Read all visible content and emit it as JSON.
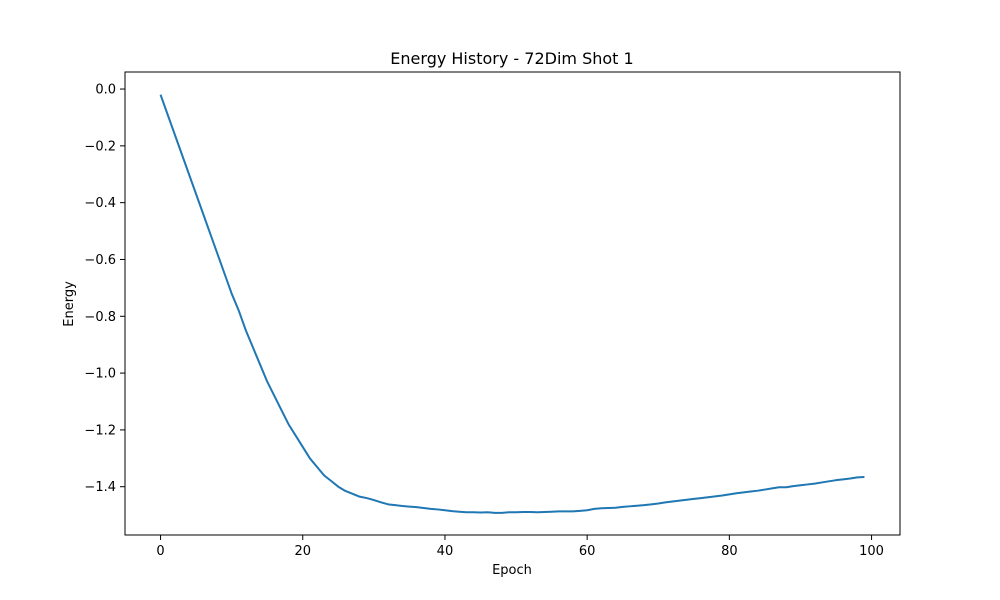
{
  "chart_data": {
    "type": "line",
    "title": "Energy History - 72Dim Shot 1",
    "xlabel": "Epoch",
    "ylabel": "Energy",
    "xlim": [
      -5,
      104
    ],
    "ylim": [
      -1.57,
      0.06
    ],
    "xticks": [
      0,
      20,
      40,
      60,
      80,
      100
    ],
    "xtick_labels": [
      "0",
      "20",
      "40",
      "60",
      "80",
      "100"
    ],
    "yticks": [
      0.0,
      -0.2,
      -0.4,
      -0.6,
      -0.8,
      -1.0,
      -1.2,
      -1.4
    ],
    "ytick_labels": [
      "0.0",
      "−0.2",
      "−0.4",
      "−0.6",
      "−0.8",
      "−1.0",
      "−1.2",
      "−1.4"
    ],
    "grid": false,
    "line_color": "#1f77b4",
    "series": [
      {
        "x": [
          0,
          1,
          2,
          3,
          4,
          5,
          6,
          7,
          8,
          9,
          10,
          11,
          12,
          13,
          14,
          15,
          16,
          17,
          18,
          19,
          20,
          21,
          22,
          23,
          24,
          25,
          26,
          27,
          28,
          29,
          30,
          31,
          32,
          33,
          34,
          35,
          36,
          37,
          38,
          39,
          40,
          41,
          42,
          43,
          44,
          45,
          46,
          47,
          48,
          49,
          50,
          51,
          52,
          53,
          54,
          55,
          56,
          57,
          58,
          59,
          60,
          61,
          62,
          63,
          64,
          65,
          66,
          67,
          68,
          69,
          70,
          71,
          72,
          73,
          74,
          75,
          76,
          77,
          78,
          79,
          80,
          81,
          82,
          83,
          84,
          85,
          86,
          87,
          88,
          89,
          90,
          91,
          92,
          93,
          94,
          95,
          96,
          97,
          98,
          99
        ],
        "y": [
          -0.02,
          -0.09,
          -0.16,
          -0.23,
          -0.3,
          -0.37,
          -0.44,
          -0.51,
          -0.58,
          -0.65,
          -0.72,
          -0.78,
          -0.85,
          -0.91,
          -0.97,
          -1.03,
          -1.08,
          -1.13,
          -1.18,
          -1.22,
          -1.26,
          -1.3,
          -1.33,
          -1.36,
          -1.38,
          -1.4,
          -1.415,
          -1.425,
          -1.435,
          -1.44,
          -1.447,
          -1.455,
          -1.462,
          -1.465,
          -1.468,
          -1.47,
          -1.472,
          -1.475,
          -1.478,
          -1.48,
          -1.483,
          -1.486,
          -1.488,
          -1.49,
          -1.49,
          -1.491,
          -1.49,
          -1.492,
          -1.492,
          -1.49,
          -1.49,
          -1.489,
          -1.489,
          -1.49,
          -1.489,
          -1.488,
          -1.487,
          -1.487,
          -1.487,
          -1.485,
          -1.483,
          -1.478,
          -1.476,
          -1.475,
          -1.474,
          -1.471,
          -1.469,
          -1.467,
          -1.465,
          -1.462,
          -1.459,
          -1.455,
          -1.452,
          -1.449,
          -1.446,
          -1.443,
          -1.44,
          -1.437,
          -1.434,
          -1.431,
          -1.427,
          -1.423,
          -1.42,
          -1.417,
          -1.414,
          -1.41,
          -1.406,
          -1.402,
          -1.402,
          -1.398,
          -1.395,
          -1.392,
          -1.389,
          -1.385,
          -1.381,
          -1.377,
          -1.374,
          -1.371,
          -1.367,
          -1.366
        ]
      }
    ]
  }
}
